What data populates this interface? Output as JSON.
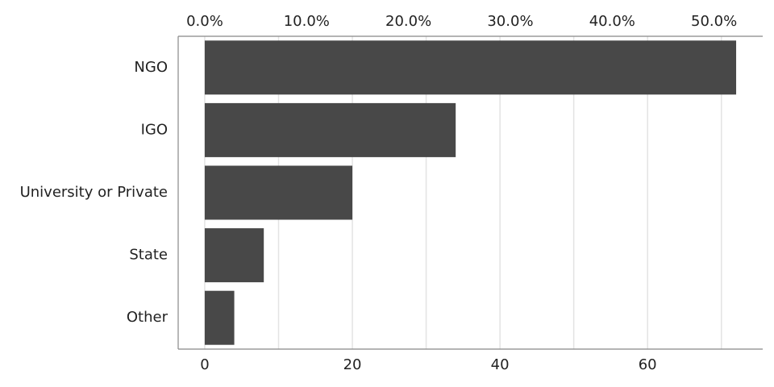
{
  "chart_data": {
    "type": "bar",
    "orientation": "horizontal",
    "categories": [
      "NGO",
      "IGO",
      "University or Private",
      "State",
      "Other"
    ],
    "values": [
      72,
      34,
      20,
      8,
      4
    ],
    "color": "#484848",
    "xlim": [
      -3.6,
      75.6
    ],
    "xticks": [
      0,
      20,
      40,
      60
    ],
    "x2lim": [
      -2.61,
      54.78
    ],
    "x2ticks": [
      {
        "value": 0,
        "label": "0.0%"
      },
      {
        "value": 10,
        "label": "10.0%"
      },
      {
        "value": 20,
        "label": "20.0%"
      },
      {
        "value": 30,
        "label": "30.0%"
      },
      {
        "value": 40,
        "label": "40.0%"
      },
      {
        "value": 50,
        "label": "50.0%"
      }
    ],
    "grid": true
  }
}
